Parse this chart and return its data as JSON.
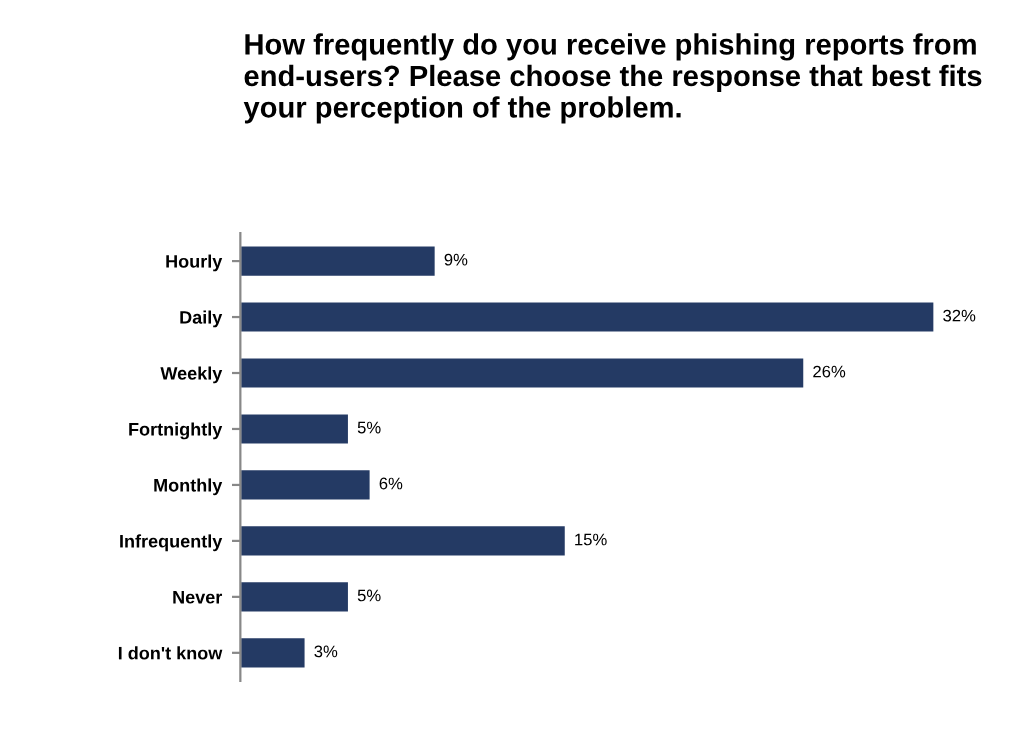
{
  "chart_data": {
    "type": "bar",
    "orientation": "horizontal",
    "title": "How frequently do you receive phishing reports from end-users? Please choose the response that best fits your perception of the problem.",
    "categories": [
      "Hourly",
      "Daily",
      "Weekly",
      "Fortnightly",
      "Monthly",
      "Infrequently",
      "Never",
      "I don't know"
    ],
    "values": [
      9,
      32,
      26,
      5,
      6,
      15,
      5,
      3
    ],
    "value_labels": [
      "9%",
      "32%",
      "26%",
      "5%",
      "6%",
      "15%",
      "5%",
      "3%"
    ],
    "color": "#243a64",
    "tick_labels": "y",
    "grid": false,
    "legend": false
  }
}
